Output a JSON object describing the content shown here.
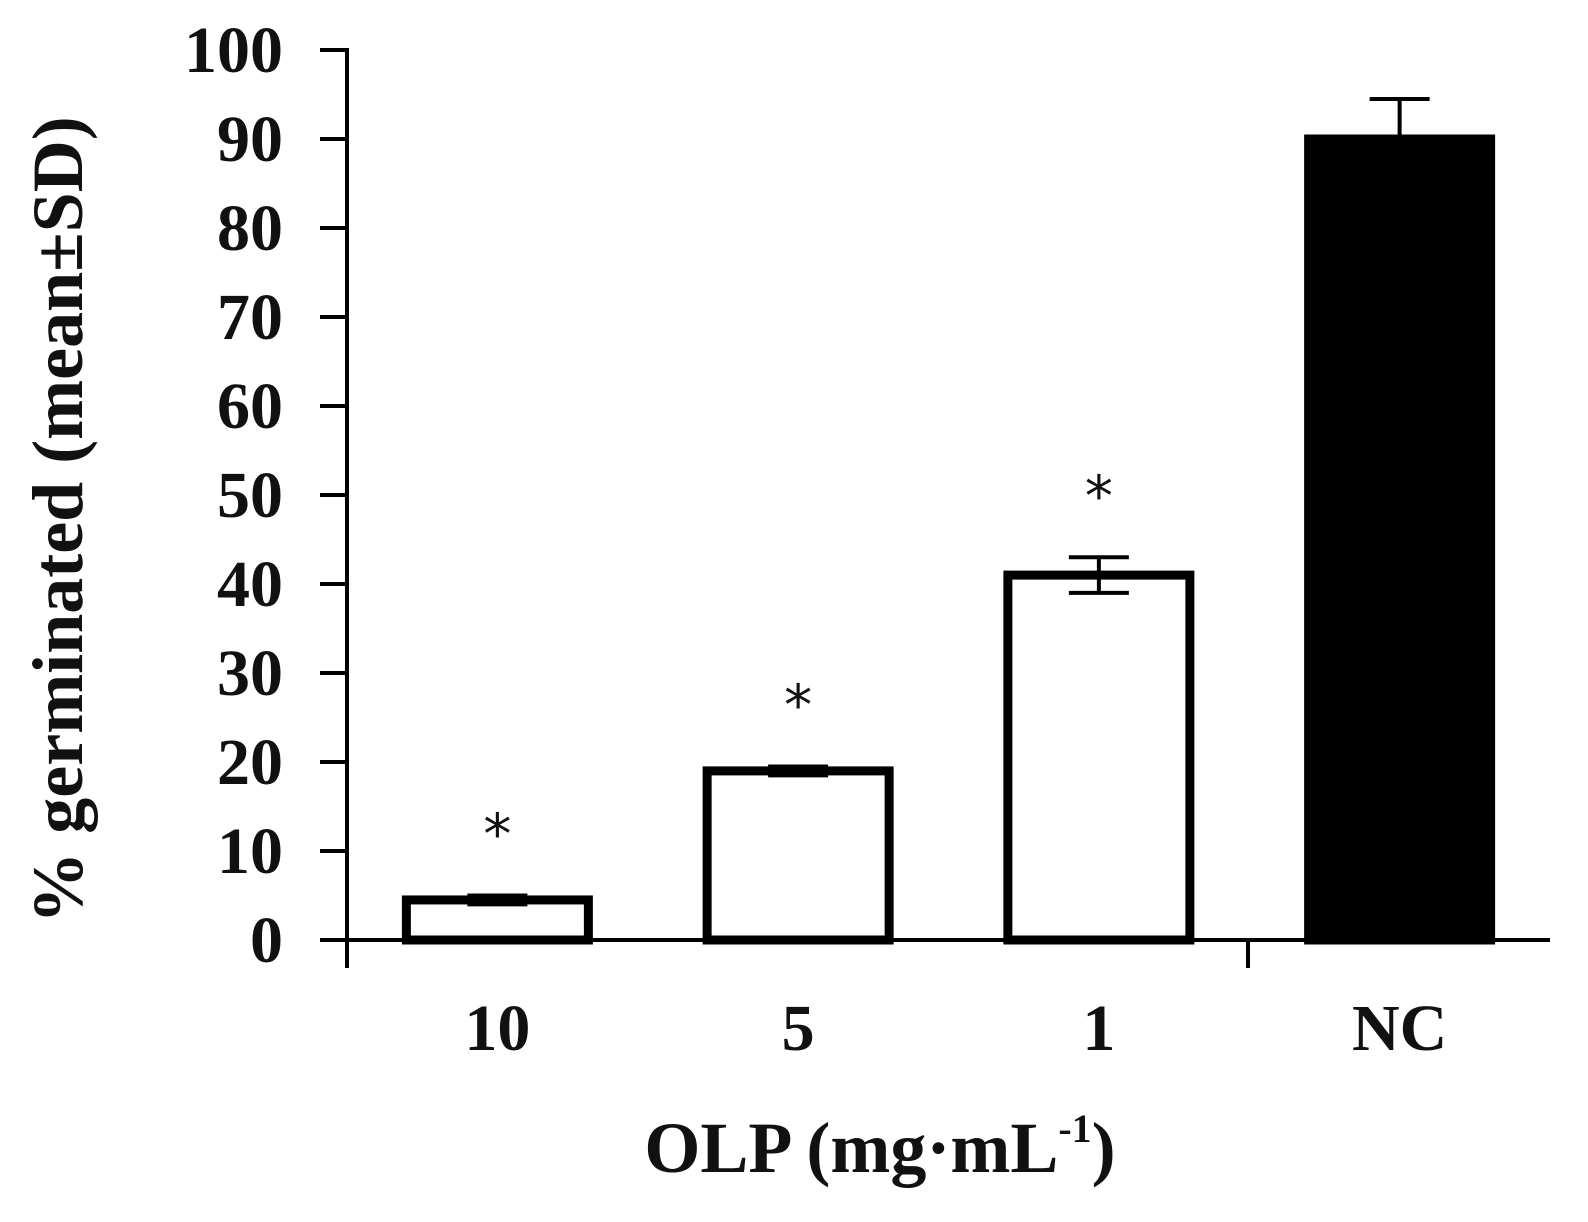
{
  "chart_data": {
    "type": "bar",
    "categories": [
      "10",
      "5",
      "1",
      "NC"
    ],
    "values": [
      4.5,
      19,
      41,
      90
    ],
    "errors": [
      0.5,
      0.5,
      2,
      4.5
    ],
    "significance": [
      "*",
      "*",
      "*",
      ""
    ],
    "fills": [
      "#ffffff",
      "#ffffff",
      "#ffffff",
      "#000000"
    ],
    "xlabel": "OLP (mg·mL",
    "xlabel_sup": "-1",
    "xlabel_close": ")",
    "ylabel": "% germinated (mean±SD)",
    "ylim": [
      0,
      100
    ],
    "yticks": [
      "0",
      "10",
      "20",
      "30",
      "40",
      "50",
      "60",
      "70",
      "80",
      "90",
      "100"
    ],
    "grid": false,
    "colors": {
      "axis": "#000000",
      "bar_edge": "#000000"
    }
  }
}
